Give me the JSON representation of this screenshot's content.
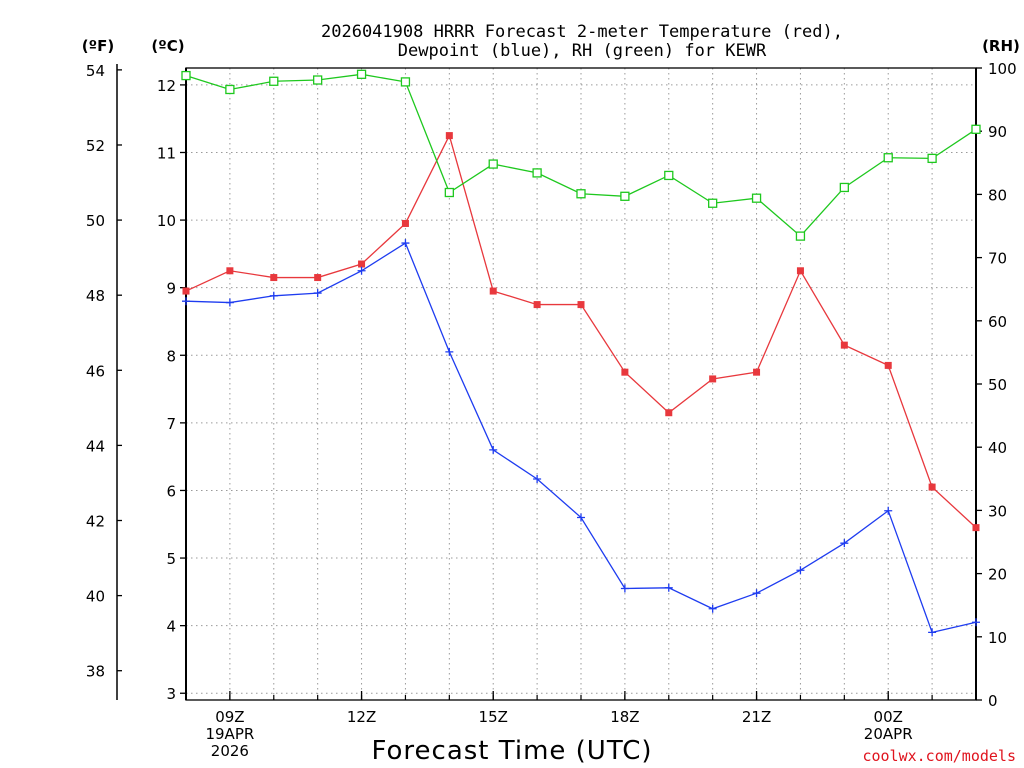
{
  "chart_data": {
    "type": "line",
    "title": "2026041908 HRRR Forecast 2-meter Temperature (red), Dewpoint (blue), RH (green) for KEWR",
    "title_lines": [
      "2026041908 HRRR Forecast 2-meter Temperature (red),",
      "Dewpoint (blue), RH (green) for KEWR"
    ],
    "xlabel": "Forecast Time (UTC)",
    "credit": "coolwx.com/models",
    "x": [
      8,
      9,
      10,
      11,
      12,
      13,
      14,
      15,
      16,
      17,
      18,
      19,
      20,
      21,
      22,
      23,
      24,
      25,
      26
    ],
    "xlim": [
      8,
      26
    ],
    "x_ticks": [
      {
        "x": 9,
        "lines": [
          "09Z",
          "19APR",
          "2026"
        ]
      },
      {
        "x": 12,
        "lines": [
          "12Z"
        ]
      },
      {
        "x": 15,
        "lines": [
          "15Z"
        ]
      },
      {
        "x": 18,
        "lines": [
          "18Z"
        ]
      },
      {
        "x": 21,
        "lines": [
          "21Z"
        ]
      },
      {
        "x": 24,
        "lines": [
          "00Z",
          "20APR"
        ]
      }
    ],
    "axes": {
      "celsius": {
        "unit_label": "(ºC)",
        "ylim": [
          2.9,
          12.25
        ],
        "ticks": [
          3,
          4,
          5,
          6,
          7,
          8,
          9,
          10,
          11,
          12
        ]
      },
      "fahrenheit": {
        "unit_label": "(ºF)",
        "ticks": [
          38,
          40,
          42,
          44,
          46,
          48,
          50,
          52,
          54
        ]
      },
      "rh": {
        "unit_label": "(RH)",
        "ylim": [
          0,
          100
        ],
        "ticks": [
          0,
          10,
          20,
          30,
          40,
          50,
          60,
          70,
          80,
          90,
          100
        ]
      }
    },
    "series": [
      {
        "name": "Temperature",
        "axis": "celsius",
        "color": "#e8383d",
        "marker": "square-filled",
        "values": [
          8.95,
          9.25,
          9.15,
          9.15,
          9.35,
          9.95,
          11.25,
          8.95,
          8.75,
          8.75,
          7.75,
          7.15,
          7.65,
          7.75,
          9.25,
          8.15,
          7.85,
          6.05,
          5.45
        ]
      },
      {
        "name": "Dewpoint",
        "axis": "celsius",
        "color": "#1e3cf0",
        "marker": "plus",
        "values": [
          8.8,
          8.78,
          8.88,
          8.92,
          9.25,
          9.66,
          8.05,
          6.6,
          6.17,
          5.6,
          4.55,
          4.56,
          4.25,
          4.48,
          4.82,
          5.22,
          5.7,
          3.9,
          4.05
        ]
      },
      {
        "name": "RH",
        "axis": "rh",
        "color": "#1ec81e",
        "marker": "square-open",
        "values": [
          98.8,
          96.6,
          97.9,
          98.1,
          99.0,
          97.8,
          80.3,
          84.8,
          83.4,
          80.1,
          79.7,
          83.0,
          78.6,
          79.4,
          73.4,
          81.1,
          85.8,
          85.7,
          90.3
        ]
      }
    ]
  }
}
